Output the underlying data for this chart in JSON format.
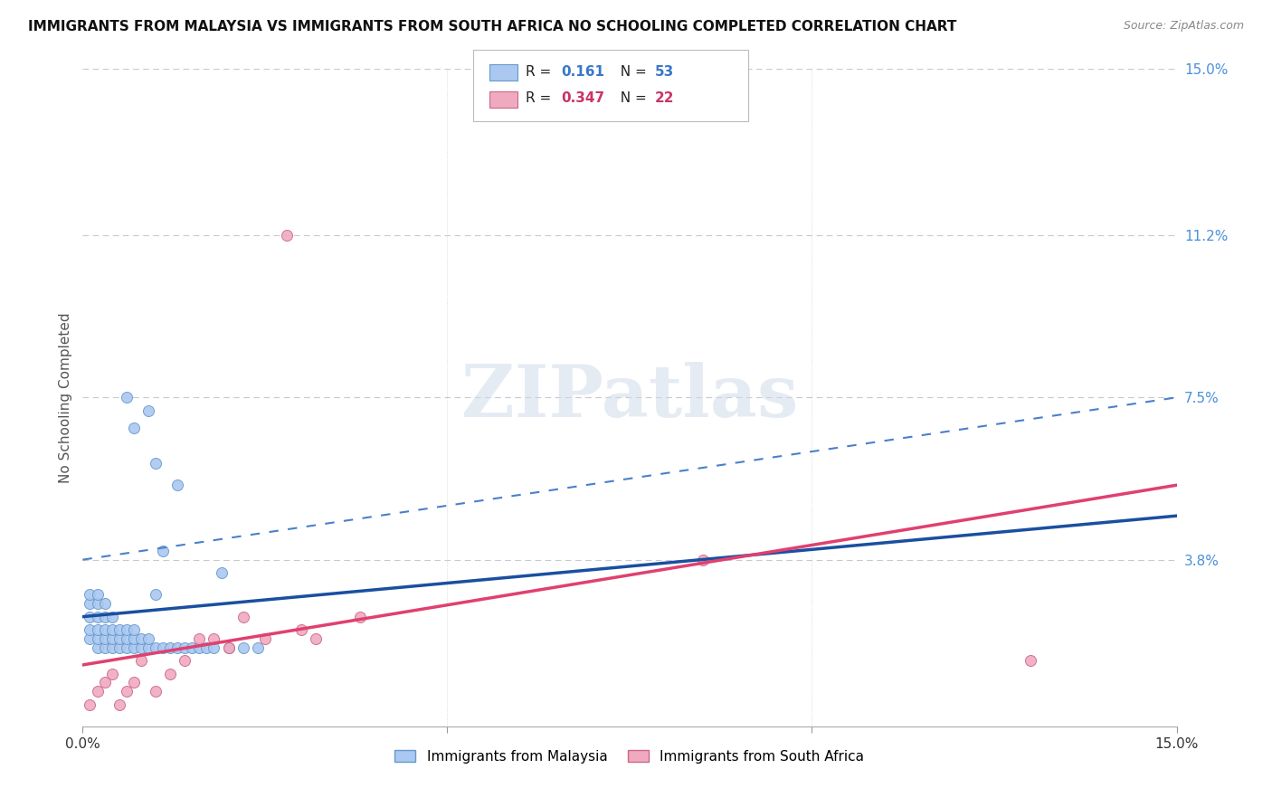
{
  "title": "IMMIGRANTS FROM MALAYSIA VS IMMIGRANTS FROM SOUTH AFRICA NO SCHOOLING COMPLETED CORRELATION CHART",
  "source": "Source: ZipAtlas.com",
  "ylabel": "No Schooling Completed",
  "xlim": [
    0.0,
    0.15
  ],
  "ylim": [
    0.0,
    0.15
  ],
  "x_tick_positions": [
    0.0,
    0.05,
    0.1,
    0.15
  ],
  "x_tick_labels": [
    "0.0%",
    "",
    "",
    "15.0%"
  ],
  "y_tick_labels_right": [
    "15.0%",
    "11.2%",
    "7.5%",
    "3.8%",
    ""
  ],
  "y_tick_positions_right": [
    0.15,
    0.112,
    0.075,
    0.038,
    0.0
  ],
  "watermark_text": "ZIPatlas",
  "malaysia_color": "#aac8f0",
  "malaysia_edge": "#6699cc",
  "south_africa_color": "#f0aac0",
  "south_africa_edge": "#cc6688",
  "malaysia_line_color": "#1a4fa0",
  "south_africa_line_color": "#e04070",
  "dashed_line_color": "#4a80c8",
  "grid_color": "#c8c8d0",
  "malaysia_label": "Immigrants from Malaysia",
  "south_africa_label": "Immigrants from South Africa",
  "R_malaysia": 0.161,
  "N_malaysia": 53,
  "R_south_africa": 0.347,
  "N_south_africa": 22,
  "mal_x": [
    0.001,
    0.001,
    0.001,
    0.001,
    0.001,
    0.002,
    0.002,
    0.002,
    0.002,
    0.002,
    0.002,
    0.003,
    0.003,
    0.003,
    0.003,
    0.003,
    0.004,
    0.004,
    0.004,
    0.004,
    0.005,
    0.005,
    0.005,
    0.006,
    0.006,
    0.006,
    0.007,
    0.007,
    0.007,
    0.008,
    0.008,
    0.009,
    0.009,
    0.01,
    0.01,
    0.011,
    0.011,
    0.012,
    0.013,
    0.014,
    0.015,
    0.016,
    0.017,
    0.018,
    0.019,
    0.02,
    0.022,
    0.024,
    0.01,
    0.013,
    0.007,
    0.009,
    0.006
  ],
  "mal_y": [
    0.02,
    0.022,
    0.025,
    0.028,
    0.03,
    0.018,
    0.02,
    0.022,
    0.025,
    0.028,
    0.03,
    0.018,
    0.02,
    0.022,
    0.025,
    0.028,
    0.018,
    0.02,
    0.022,
    0.025,
    0.018,
    0.02,
    0.022,
    0.018,
    0.02,
    0.022,
    0.018,
    0.02,
    0.022,
    0.018,
    0.02,
    0.018,
    0.02,
    0.018,
    0.03,
    0.018,
    0.04,
    0.018,
    0.018,
    0.018,
    0.018,
    0.018,
    0.018,
    0.018,
    0.035,
    0.018,
    0.018,
    0.018,
    0.06,
    0.055,
    0.068,
    0.072,
    0.075
  ],
  "sa_x": [
    0.001,
    0.002,
    0.003,
    0.004,
    0.005,
    0.006,
    0.007,
    0.008,
    0.01,
    0.012,
    0.014,
    0.016,
    0.018,
    0.02,
    0.022,
    0.025,
    0.028,
    0.03,
    0.032,
    0.038,
    0.085,
    0.13
  ],
  "sa_y": [
    0.005,
    0.008,
    0.01,
    0.012,
    0.005,
    0.008,
    0.01,
    0.015,
    0.008,
    0.012,
    0.015,
    0.02,
    0.02,
    0.018,
    0.025,
    0.02,
    0.112,
    0.022,
    0.02,
    0.025,
    0.038,
    0.015
  ],
  "mal_line_x0": 0.0,
  "mal_line_y0": 0.025,
  "mal_line_x1": 0.15,
  "mal_line_y1": 0.048,
  "sa_line_x0": 0.0,
  "sa_line_y0": 0.014,
  "sa_line_x1": 0.15,
  "sa_line_y1": 0.055,
  "dash_line_x0": 0.0,
  "dash_line_y0": 0.038,
  "dash_line_x1": 0.15,
  "dash_line_y1": 0.075
}
